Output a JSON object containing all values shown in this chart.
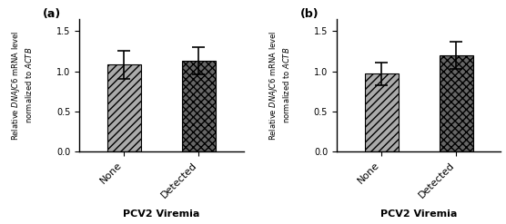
{
  "panels": [
    {
      "label": "(a)",
      "categories": [
        "None",
        "Detected"
      ],
      "values": [
        1.08,
        1.13
      ],
      "errors": [
        0.17,
        0.17
      ],
      "xlabel": "PCV2 Viremia",
      "ylim": [
        0,
        1.65
      ],
      "yticks": [
        0.0,
        0.5,
        1.0,
        1.5
      ],
      "bar_colors": [
        "#aaaaaa",
        "#666666"
      ],
      "hatch_patterns": [
        "////",
        "xxxx"
      ],
      "bar_width": 0.45
    },
    {
      "label": "(b)",
      "categories": [
        "None",
        "Detected"
      ],
      "values": [
        0.97,
        1.2
      ],
      "errors": [
        0.14,
        0.17
      ],
      "xlabel": "PCV2 Viremia",
      "ylim": [
        0,
        1.65
      ],
      "yticks": [
        0.0,
        0.5,
        1.0,
        1.5
      ],
      "bar_colors": [
        "#aaaaaa",
        "#666666"
      ],
      "hatch_patterns": [
        "////",
        "xxxx"
      ],
      "bar_width": 0.45
    }
  ],
  "fig_width": 5.56,
  "fig_height": 2.47,
  "dpi": 100,
  "background_color": "#ffffff"
}
